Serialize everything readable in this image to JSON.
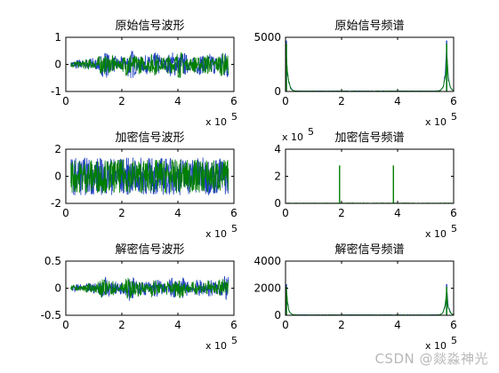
{
  "watermark": "CSDN @燚淼神光",
  "chart_data": [
    {
      "type": "line",
      "title": "原始信号波形",
      "xlabel": "",
      "ylabel": "",
      "xlim": [
        0,
        600000
      ],
      "ylim": [
        -1,
        1
      ],
      "x_ticks": [
        0,
        2,
        4,
        6
      ],
      "y_ticks": [
        -1,
        0,
        1
      ],
      "x_multiplier": "x 10",
      "x_exponent": "5",
      "series": [
        {
          "color": "#1f3fbf",
          "x": [
            18000,
            580000
          ],
          "envelope": [
            [
              0,
              0.15
            ],
            [
              0.08,
              0.22
            ],
            [
              0.16,
              0.3
            ],
            [
              0.22,
              0.55
            ],
            [
              0.3,
              0.25
            ],
            [
              0.38,
              0.6
            ],
            [
              0.46,
              0.3
            ],
            [
              0.52,
              0.5
            ],
            [
              0.6,
              0.35
            ],
            [
              0.68,
              0.6
            ],
            [
              0.76,
              0.3
            ],
            [
              0.84,
              0.45
            ],
            [
              0.92,
              0.4
            ],
            [
              1,
              0.6
            ]
          ]
        },
        {
          "color": "#007f00",
          "x": [
            18000,
            580000
          ],
          "envelope": [
            [
              0,
              0.12
            ],
            [
              0.08,
              0.18
            ],
            [
              0.16,
              0.25
            ],
            [
              0.22,
              0.5
            ],
            [
              0.3,
              0.22
            ],
            [
              0.38,
              0.55
            ],
            [
              0.46,
              0.28
            ],
            [
              0.52,
              0.45
            ],
            [
              0.6,
              0.3
            ],
            [
              0.68,
              0.55
            ],
            [
              0.76,
              0.28
            ],
            [
              0.84,
              0.4
            ],
            [
              0.92,
              0.35
            ],
            [
              1,
              0.55
            ]
          ]
        }
      ]
    },
    {
      "type": "line",
      "title": "原始信号频谱",
      "xlabel": "",
      "ylabel": "",
      "xlim": [
        0,
        600000
      ],
      "ylim": [
        0,
        5000
      ],
      "x_ticks": [
        0,
        2,
        4,
        6
      ],
      "y_ticks": [
        0,
        5000
      ],
      "x_multiplier": "x 10",
      "x_exponent": "5",
      "series": [
        {
          "color": "#1f3fbf",
          "peaks": [
            [
              3000,
              4700
            ],
            [
              575000,
              4700
            ]
          ],
          "floor": 40
        },
        {
          "color": "#007f00",
          "peaks": [
            [
              3000,
              4400
            ],
            [
              575000,
              4400
            ]
          ],
          "floor": 35
        }
      ]
    },
    {
      "type": "line",
      "title": "加密信号波形",
      "xlabel": "",
      "ylabel": "",
      "xlim": [
        0,
        600000
      ],
      "ylim": [
        -2,
        2
      ],
      "x_ticks": [
        0,
        2,
        4,
        6
      ],
      "y_ticks": [
        -2,
        0,
        2
      ],
      "x_multiplier": "x 10",
      "x_exponent": "5",
      "series": [
        {
          "color": "#1f3fbf",
          "x": [
            18000,
            580000
          ],
          "amplitude": 1.4
        },
        {
          "color": "#007f00",
          "x": [
            18000,
            580000
          ],
          "amplitude": 1.25
        }
      ]
    },
    {
      "type": "line",
      "title": "加密信号频谱",
      "xlabel": "",
      "ylabel": "",
      "xlim": [
        0,
        600000
      ],
      "ylim": [
        0,
        4
      ],
      "x_ticks": [
        0,
        2,
        4,
        6
      ],
      "y_ticks": [
        0,
        2,
        4
      ],
      "x_multiplier": "x 10",
      "x_exponent": "5",
      "y_multiplier": "x 10",
      "y_exponent": "5",
      "series": [
        {
          "color": "#007f00",
          "peaks": [
            [
              193000,
              2.8
            ],
            [
              385000,
              2.8
            ]
          ],
          "floor": 0.02
        }
      ]
    },
    {
      "type": "line",
      "title": "解密信号波形",
      "xlabel": "",
      "ylabel": "",
      "xlim": [
        0,
        600000
      ],
      "ylim": [
        -0.5,
        0.5
      ],
      "x_ticks": [
        0,
        2,
        4,
        6
      ],
      "y_ticks": [
        -0.5,
        0,
        0.5
      ],
      "x_multiplier": "x 10",
      "x_exponent": "5",
      "series": [
        {
          "color": "#1f3fbf",
          "x": [
            18000,
            580000
          ],
          "envelope": [
            [
              0,
              0.06
            ],
            [
              0.08,
              0.09
            ],
            [
              0.16,
              0.12
            ],
            [
              0.22,
              0.24
            ],
            [
              0.3,
              0.1
            ],
            [
              0.38,
              0.26
            ],
            [
              0.46,
              0.12
            ],
            [
              0.52,
              0.2
            ],
            [
              0.6,
              0.14
            ],
            [
              0.68,
              0.25
            ],
            [
              0.76,
              0.12
            ],
            [
              0.84,
              0.18
            ],
            [
              0.92,
              0.16
            ],
            [
              1,
              0.25
            ]
          ]
        },
        {
          "color": "#007f00",
          "x": [
            18000,
            580000
          ],
          "envelope": [
            [
              0,
              0.05
            ],
            [
              0.08,
              0.08
            ],
            [
              0.16,
              0.1
            ],
            [
              0.22,
              0.22
            ],
            [
              0.3,
              0.09
            ],
            [
              0.38,
              0.23
            ],
            [
              0.46,
              0.11
            ],
            [
              0.52,
              0.18
            ],
            [
              0.6,
              0.12
            ],
            [
              0.68,
              0.22
            ],
            [
              0.76,
              0.11
            ],
            [
              0.84,
              0.16
            ],
            [
              0.92,
              0.14
            ],
            [
              1,
              0.22
            ]
          ]
        }
      ]
    },
    {
      "type": "line",
      "title": "解密信号频谱",
      "xlabel": "",
      "ylabel": "",
      "xlim": [
        0,
        600000
      ],
      "ylim": [
        0,
        4000
      ],
      "x_ticks": [
        0,
        2,
        4,
        6
      ],
      "y_ticks": [
        0,
        2000,
        4000
      ],
      "x_multiplier": "x 10",
      "x_exponent": "5",
      "series": [
        {
          "color": "#1f3fbf",
          "peaks": [
            [
              3000,
              2300
            ],
            [
              575000,
              2300
            ]
          ],
          "floor": 30
        },
        {
          "color": "#007f00",
          "peaks": [
            [
              3000,
              2100
            ],
            [
              575000,
              2100
            ]
          ],
          "floor": 25
        }
      ]
    }
  ]
}
